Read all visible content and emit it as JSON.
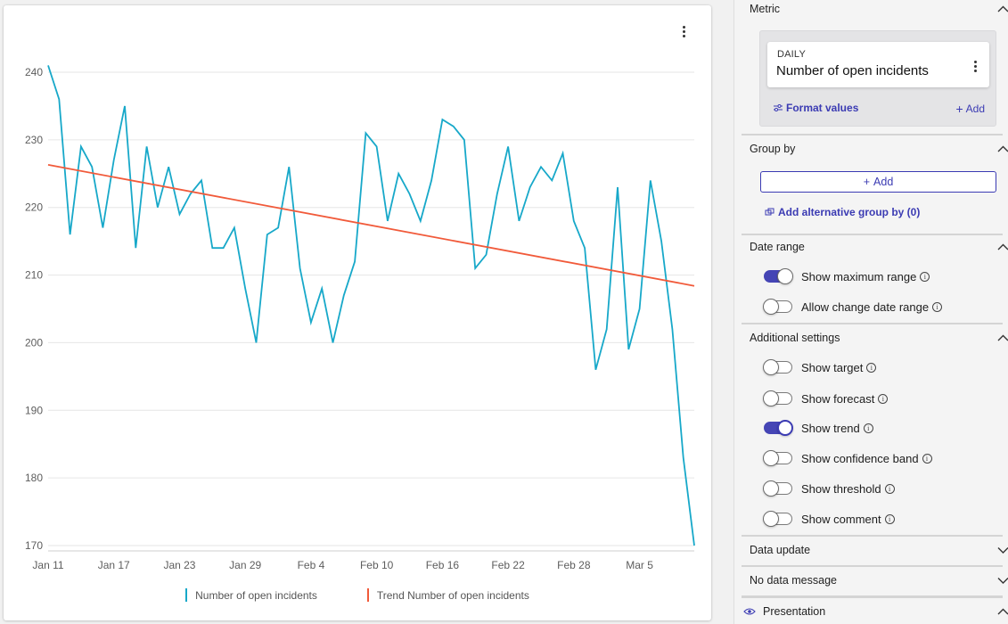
{
  "chart_card": {
    "menu_icon": "kebab-vertical-icon"
  },
  "chart_data": {
    "type": "line",
    "title": "",
    "xlabel": "",
    "ylabel": "",
    "ylim": [
      169,
      242
    ],
    "grid": true,
    "legend_position": "bottom",
    "y_ticks": [
      170,
      180,
      190,
      200,
      210,
      220,
      230,
      240
    ],
    "x_tick_labels": [
      "Jan 11",
      "Jan 17",
      "Jan 23",
      "Jan 29",
      "Feb 4",
      "Feb 10",
      "Feb 16",
      "Feb 22",
      "Feb 28",
      "Mar 5"
    ],
    "x_tick_days": [
      0,
      6,
      12,
      18,
      24,
      30,
      36,
      42,
      48,
      54
    ],
    "series": [
      {
        "name": "Number of open incidents",
        "color": "#17a8c9",
        "x": [
          0,
          1,
          2,
          3,
          4,
          5,
          6,
          7,
          8,
          9,
          10,
          11,
          12,
          13,
          14,
          15,
          16,
          17,
          18,
          19,
          20,
          21,
          22,
          23,
          24,
          25,
          26,
          27,
          28,
          29,
          30,
          31,
          32,
          33,
          34,
          35,
          36,
          37,
          38,
          39,
          40,
          41,
          42,
          43,
          44,
          45,
          46,
          47,
          48,
          49,
          50,
          51,
          52,
          53,
          54,
          55,
          56,
          57,
          58,
          59
        ],
        "values": [
          241,
          236,
          216,
          229,
          226,
          217,
          227,
          235,
          214,
          229,
          220,
          226,
          219,
          222,
          224,
          214,
          214,
          217,
          208,
          200,
          216,
          217,
          226,
          211,
          203,
          208,
          200,
          207,
          212,
          231,
          229,
          218,
          225,
          222,
          218,
          224,
          233,
          232,
          230,
          211,
          213,
          222,
          229,
          218,
          223,
          226,
          224,
          228,
          218,
          214,
          196,
          202,
          223,
          199,
          205,
          224,
          215,
          202,
          183,
          170
        ]
      },
      {
        "name": "Trend Number of open incidents",
        "color": "#f15a3a",
        "x": [
          0,
          59
        ],
        "values": [
          226.3,
          208.4
        ]
      }
    ]
  },
  "panel": {
    "metric": {
      "title": "Metric",
      "card_small": "DAILY",
      "card_name": "Number of open incidents",
      "format_label": "Format values",
      "add_label": "Add",
      "add_plus": "+"
    },
    "group_by": {
      "title": "Group by",
      "add_button": "Add",
      "add_plus": "+",
      "alt_link": "Add alternative group by (0)"
    },
    "date_range": {
      "title": "Date range",
      "toggles": [
        {
          "label": "Show maximum range",
          "on": true
        },
        {
          "label": "Allow change date range",
          "on": false
        }
      ]
    },
    "additional": {
      "title": "Additional settings",
      "toggles": [
        {
          "label": "Show target",
          "on": false
        },
        {
          "label": "Show forecast",
          "on": false
        },
        {
          "label": "Show trend",
          "on": true
        },
        {
          "label": "Show confidence band",
          "on": false
        },
        {
          "label": "Show threshold",
          "on": false
        },
        {
          "label": "Show comment",
          "on": false
        }
      ]
    },
    "data_update": {
      "title": "Data update"
    },
    "no_data_message": {
      "title": "No data message"
    },
    "presentation": {
      "title": "Presentation"
    }
  },
  "colors": {
    "accent": "#3b3bb3",
    "toggle_on": "#4545b5",
    "line": "#17a8c9",
    "trend": "#f15a3a"
  }
}
